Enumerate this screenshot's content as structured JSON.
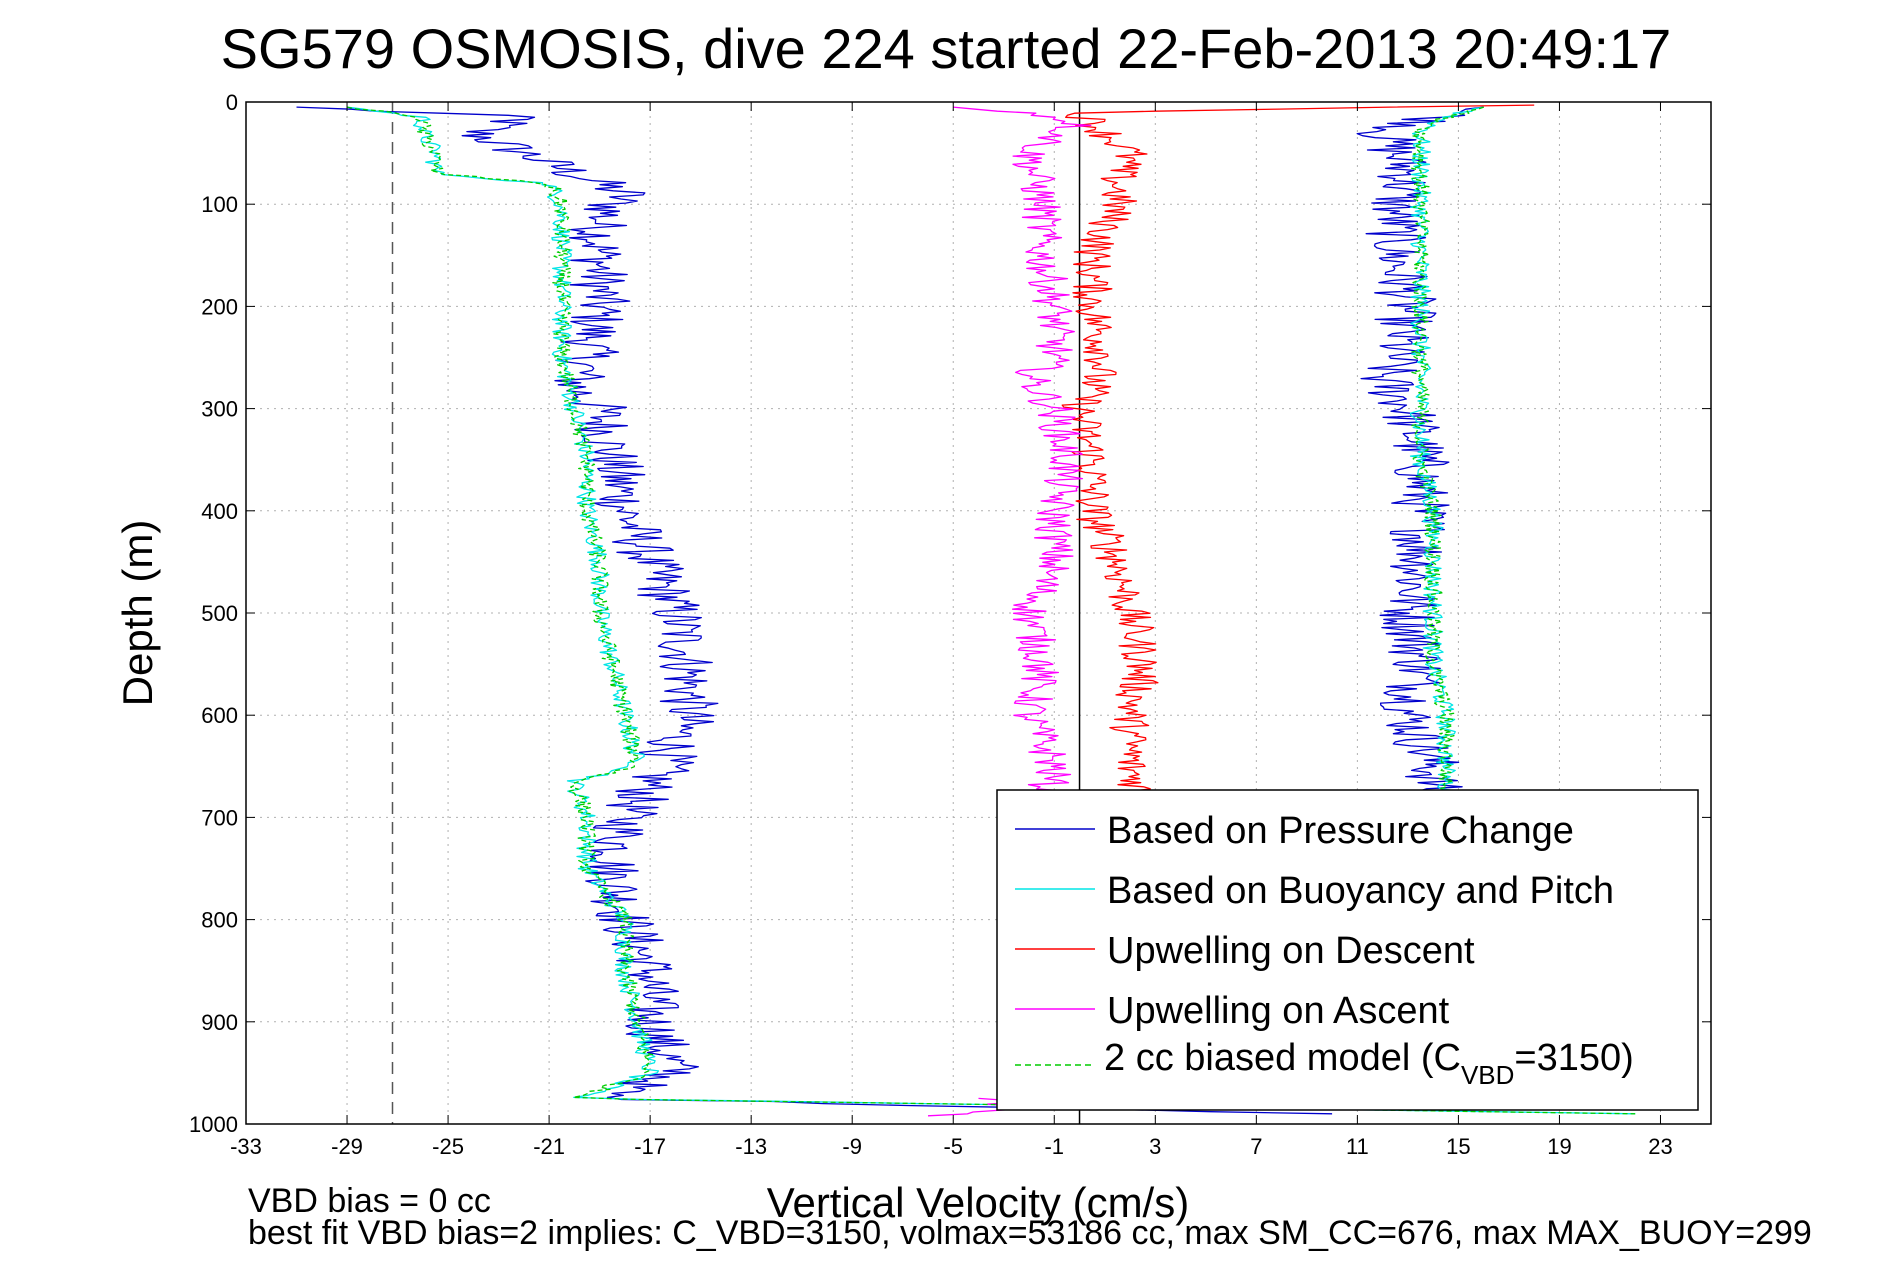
{
  "chart_data": {
    "type": "line",
    "title": "SG579 OSMOSIS, dive 224 started 22-Feb-2013 20:49:17",
    "xlabel": "Vertical Velocity (cm/s)",
    "ylabel": "Depth (m)",
    "xlim": [
      -33,
      25
    ],
    "ylim": [
      0,
      1000
    ],
    "y_reversed": true,
    "x_ticks": [
      -33,
      -29,
      -25,
      -21,
      -17,
      -13,
      -9,
      -5,
      -1,
      3,
      7,
      11,
      15,
      19,
      23
    ],
    "y_ticks": [
      0,
      100,
      200,
      300,
      400,
      500,
      600,
      700,
      800,
      900,
      1000
    ],
    "grid": true,
    "legend_position": "bottom-right",
    "reference_lines": [
      {
        "axis": "x",
        "value": -27.2,
        "style": "dashed",
        "color": "#555555"
      },
      {
        "axis": "x",
        "value": 0,
        "style": "solid",
        "color": "#000000"
      }
    ],
    "notes": [
      "VBD bias = 0 cc",
      "best fit VBD bias=2 implies: C_VBD=3150, volmax=53186 cc, max SM_CC=676, max MAX_BUOY=299"
    ],
    "legend": {
      "items": [
        {
          "label": "Based on Pressure Change",
          "color": "#0000cc",
          "style": "solid"
        },
        {
          "label": "Based on Buoyancy and Pitch",
          "color": "#00e5e5",
          "style": "solid"
        },
        {
          "label": "Upwelling on Descent",
          "color": "#ff0000",
          "style": "solid"
        },
        {
          "label": "Upwelling on Ascent",
          "color": "#ff00ff",
          "style": "solid"
        },
        {
          "label_prefix": "2 cc biased model (C",
          "label_sub": "VBD",
          "label_suffix": "=3150)",
          "color": "#00cc00",
          "style": "dashed"
        }
      ]
    },
    "series": [
      {
        "name": "Based on Pressure Change",
        "color": "#0000cc",
        "jitter": 1.2,
        "segments": [
          {
            "y": [
              5,
              15,
              30,
              50,
              70,
              90,
              100,
              120,
              150,
              200,
              250,
              280,
              300,
              350,
              400,
              450,
              500,
              550,
              600,
              650,
              700,
              750,
              800,
              850,
              900,
              950,
              975,
              990
            ],
            "x": [
              -31,
              -22,
              -24,
              -22,
              -20,
              -18,
              -18.5,
              -19,
              -19,
              -19,
              -19.5,
              -20,
              -19,
              -18.5,
              -18,
              -17,
              -16,
              -15.5,
              -15.5,
              -16.5,
              -18,
              -18.5,
              -18,
              -17,
              -17,
              -16,
              -19,
              10
            ]
          },
          {
            "y": [
              5,
              10,
              30,
              50,
              70,
              100,
              150,
              200,
              250,
              270,
              300,
              350,
              400,
              450,
              500,
              550,
              600,
              650,
              680
            ],
            "x": [
              16,
              15,
              12,
              12.5,
              13,
              12.5,
              12.5,
              13,
              12.5,
              12,
              13,
              13.5,
              13.5,
              13.5,
              13,
              13.5,
              13,
              14,
              14
            ]
          }
        ]
      },
      {
        "name": "Based on Buoyancy and Pitch",
        "color": "#00e5e5",
        "jitter": 0.4,
        "segments": [
          {
            "y": [
              5,
              15,
              30,
              50,
              70,
              80,
              100,
              150,
              200,
              250,
              300,
              350,
              400,
              450,
              500,
              550,
              600,
              650,
              665,
              700,
              750,
              800,
              850,
              900,
              950,
              975,
              990
            ],
            "x": [
              -29,
              -26,
              -26,
              -25.5,
              -25.5,
              -21,
              -20.5,
              -20.5,
              -20.5,
              -20.5,
              -20,
              -19.5,
              -19.5,
              -19,
              -19,
              -18.5,
              -18,
              -17.5,
              -20,
              -19.5,
              -19.5,
              -18,
              -18,
              -17.5,
              -17,
              -20,
              22
            ]
          },
          {
            "y": [
              5,
              15,
              30,
              60,
              100,
              150,
              200,
              250,
              300,
              350,
              400,
              450,
              500,
              550,
              600,
              650,
              680
            ],
            "x": [
              16,
              14.5,
              13.5,
              13.5,
              13.5,
              13.5,
              13.5,
              13.5,
              13.5,
              13.5,
              14,
              14,
              14,
              14,
              14.5,
              14.5,
              14.5
            ]
          }
        ]
      },
      {
        "name": "Upwelling on Descent",
        "color": "#ff0000",
        "jitter": 0.8,
        "segments": [
          {
            "y": [
              3,
              10,
              30,
              50,
              70,
              100,
              150,
              200,
              250,
              280,
              300,
              350,
              400,
              450,
              500,
              550,
              600,
              650,
              680
            ],
            "x": [
              18,
              0,
              1,
              2,
              1.5,
              1.5,
              0.5,
              0.5,
              1,
              0.5,
              0,
              0.5,
              0.5,
              1.5,
              2,
              2.5,
              2,
              2,
              2.5
            ]
          }
        ]
      },
      {
        "name": "Upwelling on Ascent",
        "color": "#ff00ff",
        "jitter": 0.8,
        "segments": [
          {
            "y": [
              5,
              10,
              20,
              50,
              100,
              150,
              200,
              250,
              270,
              300,
              350,
              400,
              450,
              500,
              550,
              600,
              650,
              690
            ],
            "x": [
              -5,
              -2,
              0,
              -2,
              -1.5,
              -1.5,
              -1,
              -1,
              -2,
              -1,
              -0.5,
              -1,
              -1,
              -2,
              -1.5,
              -2,
              -1,
              -1.5
            ]
          },
          {
            "y": [
              975,
              985,
              992
            ],
            "x": [
              -4,
              -2,
              -6
            ]
          }
        ]
      },
      {
        "name": "2 cc biased model (CVBD=3150)",
        "color": "#00cc00",
        "dashed": true,
        "jitter": 0.35,
        "segments": [
          {
            "y": [
              5,
              15,
              30,
              50,
              70,
              80,
              100,
              150,
              200,
              250,
              300,
              350,
              400,
              450,
              500,
              550,
              600,
              650,
              665,
              700,
              750,
              800,
              850,
              900,
              950,
              975,
              990
            ],
            "x": [
              -29,
              -26,
              -26,
              -25.5,
              -25.5,
              -21,
              -20.5,
              -20.5,
              -20.5,
              -20.5,
              -20,
              -19.5,
              -19.5,
              -19,
              -19,
              -18.5,
              -18,
              -17.5,
              -20,
              -19.5,
              -19.5,
              -18,
              -18,
              -17.5,
              -17,
              -20,
              22
            ]
          },
          {
            "y": [
              5,
              15,
              30,
              60,
              100,
              150,
              200,
              250,
              300,
              350,
              400,
              450,
              500,
              550,
              600,
              650,
              680
            ],
            "x": [
              16,
              14.5,
              13.5,
              13.5,
              13.5,
              13.5,
              13.5,
              13.5,
              13.5,
              13.5,
              14,
              14,
              14,
              14,
              14.5,
              14.5,
              14.5
            ]
          }
        ]
      }
    ]
  }
}
